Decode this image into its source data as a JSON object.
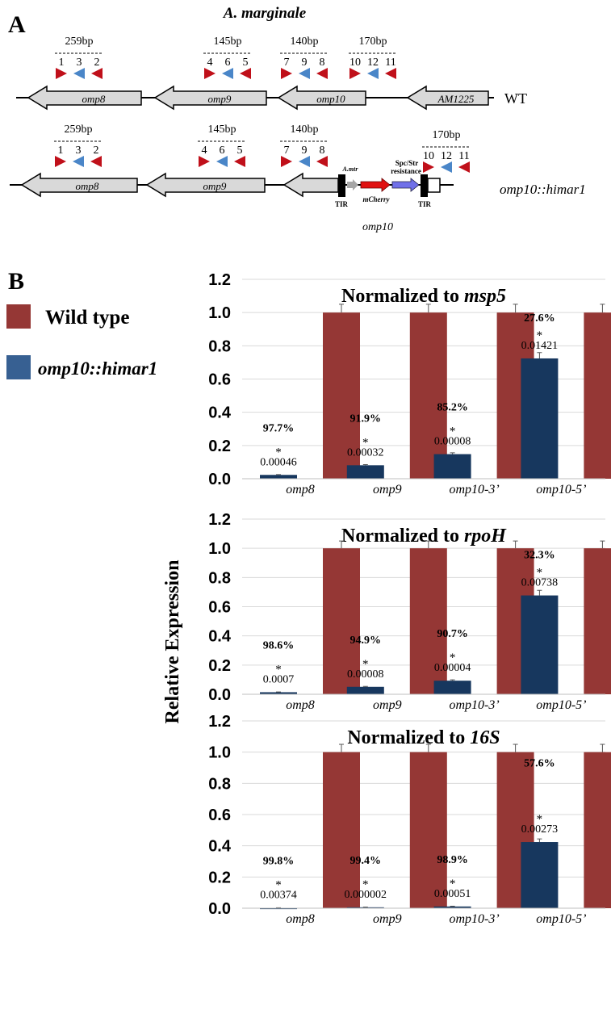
{
  "panel_a": {
    "panel_label": "A",
    "organism": "A. marginale",
    "wt_label": "WT",
    "mutant_label": "omp10::himar1",
    "wt_genes": [
      "omp8",
      "omp9",
      "omp10",
      "AM1225"
    ],
    "mut_genes": [
      "omp8",
      "omp9"
    ],
    "amplicons": [
      "259bp",
      "145bp",
      "140bp",
      "170bp"
    ],
    "primer_numbers": [
      [
        "1",
        "3",
        "2"
      ],
      [
        "4",
        "6",
        "5"
      ],
      [
        "7",
        "9",
        "8"
      ],
      [
        "10",
        "12",
        "11"
      ]
    ],
    "insert": {
      "tir": "TIR",
      "amtr": "A.mtr",
      "mcherry": "mCherry",
      "resistance_line1": "Spc/Str",
      "resistance_line2": "resistance",
      "disrupted_gene": "omp10"
    },
    "colors": {
      "forward_primer": "#c0101a",
      "probe": "#4a86c8",
      "gene_fill": "#d9d9d9",
      "mcherry_arrow": "#e01010",
      "resistance_arrow": "#7070e8"
    }
  },
  "panel_b": {
    "panel_label": "B",
    "legend": [
      {
        "label": "Wild type",
        "color": "#953735"
      },
      {
        "label": "omp10::himar1",
        "color": "#17375e"
      }
    ],
    "ylabel": "Relative Expression"
  },
  "chart_data": [
    {
      "type": "bar",
      "title_prefix": "Normalized to ",
      "title_gene": "msp5",
      "categories": [
        "omp8",
        "omp9",
        "omp10-3’",
        "omp10-5’"
      ],
      "series": [
        {
          "name": "omp10::himar1",
          "values": [
            0.023,
            0.081,
            0.148,
            0.724
          ],
          "error": [
            0.002,
            0.004,
            0.008,
            0.035
          ],
          "color": "#17375e"
        },
        {
          "name": "Wild type",
          "values": [
            1.0,
            1.0,
            1.0,
            1.0
          ],
          "error": [
            0.05,
            0.05,
            0.05,
            0.05
          ],
          "color": "#953735"
        }
      ],
      "percent_labels": [
        "97.7%",
        "91.9%",
        "85.2%",
        "27.6%"
      ],
      "pvalues": [
        "0.00046",
        "0.00032",
        "0.00008",
        "0.01421"
      ],
      "star": "*",
      "ylim": [
        0,
        1.2
      ],
      "yticks": [
        "0.0",
        "0.2",
        "0.4",
        "0.6",
        "0.8",
        "1.0",
        "1.2"
      ],
      "grid": true
    },
    {
      "type": "bar",
      "title_prefix": "Normalized to ",
      "title_gene": "rpoH",
      "categories": [
        "omp8",
        "omp9",
        "omp10-3’",
        "omp10-5’"
      ],
      "series": [
        {
          "name": "omp10::himar1",
          "values": [
            0.014,
            0.051,
            0.093,
            0.677
          ],
          "error": [
            0.002,
            0.003,
            0.006,
            0.035
          ],
          "color": "#17375e"
        },
        {
          "name": "Wild type",
          "values": [
            1.0,
            1.0,
            1.0,
            1.0
          ],
          "error": [
            0.05,
            0.05,
            0.05,
            0.05
          ],
          "color": "#953735"
        }
      ],
      "percent_labels": [
        "98.6%",
        "94.9%",
        "90.7%",
        "32.3%"
      ],
      "pvalues": [
        "0.0007",
        "0.00008",
        "0.00004",
        "0.00738"
      ],
      "star": "*",
      "ylim": [
        0,
        1.2
      ],
      "yticks": [
        "0.0",
        "0.2",
        "0.4",
        "0.6",
        "0.8",
        "1.0",
        "1.2"
      ],
      "grid": true
    },
    {
      "type": "bar",
      "title_prefix": "Normalized to ",
      "title_gene": "16S",
      "categories": [
        "omp8",
        "omp9",
        "omp10-3’",
        "omp10-5’"
      ],
      "series": [
        {
          "name": "omp10::himar1",
          "values": [
            0.002,
            0.006,
            0.011,
            0.424
          ],
          "error": [
            0.001,
            0.001,
            0.002,
            0.02
          ],
          "color": "#17375e"
        },
        {
          "name": "Wild type",
          "values": [
            1.0,
            1.0,
            1.0,
            1.0
          ],
          "error": [
            0.05,
            0.05,
            0.05,
            0.05
          ],
          "color": "#953735"
        }
      ],
      "percent_labels": [
        "99.8%",
        "99.4%",
        "98.9%",
        "57.6%"
      ],
      "pvalues": [
        "0.00374",
        "0.000002",
        "0.00051",
        "0.00273"
      ],
      "star": "*",
      "ylim": [
        0,
        1.2
      ],
      "yticks": [
        "0.0",
        "0.2",
        "0.4",
        "0.6",
        "0.8",
        "1.0",
        "1.2"
      ],
      "grid": true
    }
  ]
}
